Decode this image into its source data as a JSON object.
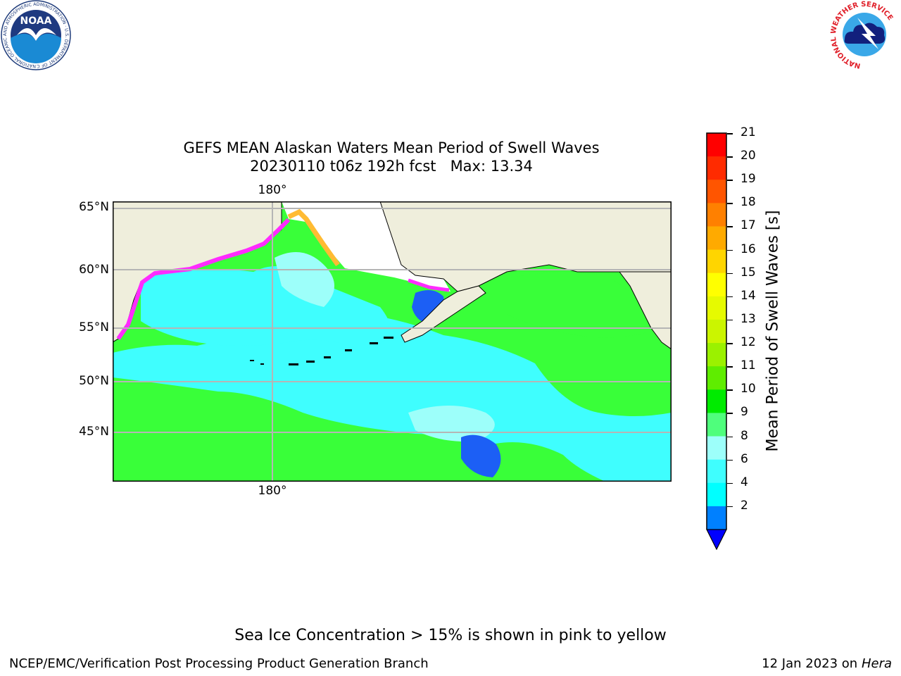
{
  "title": {
    "line1": "GEFS MEAN Alaskan Waters Mean Period of Swell Waves",
    "line2": "20230110 t06z 192h fcst   Max: 13.34"
  },
  "map": {
    "latitude_labels": [
      "65°N",
      "60°N",
      "55°N",
      "50°N",
      "45°N"
    ],
    "longitude_labels": {
      "top": "180°",
      "bottom": "180°"
    },
    "colors": {
      "land": "#efeedc",
      "ocean_mid": "#39ff39",
      "ocean_cyan": "#3ffefe",
      "ocean_light": "#9dfffa",
      "ice_pink": "#ff2bff",
      "ice_orange": "#ffbb33",
      "ice_free": "#ffffff",
      "blue": "#1c5ff5",
      "grid": "#b5b5b5"
    }
  },
  "colorbar": {
    "label": "Mean Period of Swell Waves [s]",
    "ticks": [
      "21",
      "20",
      "19",
      "18",
      "17",
      "16",
      "15",
      "14",
      "13",
      "12",
      "11",
      "10",
      "9",
      "8",
      "6",
      "4",
      "2"
    ],
    "bins": [
      {
        "color": "#ff0000"
      },
      {
        "color": "#ff2b00"
      },
      {
        "color": "#ff5500"
      },
      {
        "color": "#ff8000"
      },
      {
        "color": "#ffaa00"
      },
      {
        "color": "#ffd500"
      },
      {
        "color": "#ffff00"
      },
      {
        "color": "#e6fa00"
      },
      {
        "color": "#cbf500"
      },
      {
        "color": "#9bf100"
      },
      {
        "color": "#5fed00"
      },
      {
        "color": "#00eb00"
      },
      {
        "color": "#4ffe7c"
      },
      {
        "color": "#9dfffa"
      },
      {
        "color": "#3ffefe"
      },
      {
        "color": "#00ffff"
      },
      {
        "color": "#0080ff"
      }
    ],
    "under_color": "#0000ff"
  },
  "footer": {
    "note": "Sea Ice Concentration > 15% is shown in pink to yellow",
    "left": "NCEP/EMC/Verification Post Processing Product Generation Branch",
    "right_date": "12 Jan 2023 on",
    "right_host": "Hera"
  },
  "logos": {
    "noaa_text": "NOAA",
    "noaa_ring": "NATIONAL OCEANIC AND ATMOSPHERIC ADMINISTRATION · U.S. DEPARTMENT OF COMMERCE",
    "nws_ring": "NATIONAL WEATHER SERVICE"
  }
}
